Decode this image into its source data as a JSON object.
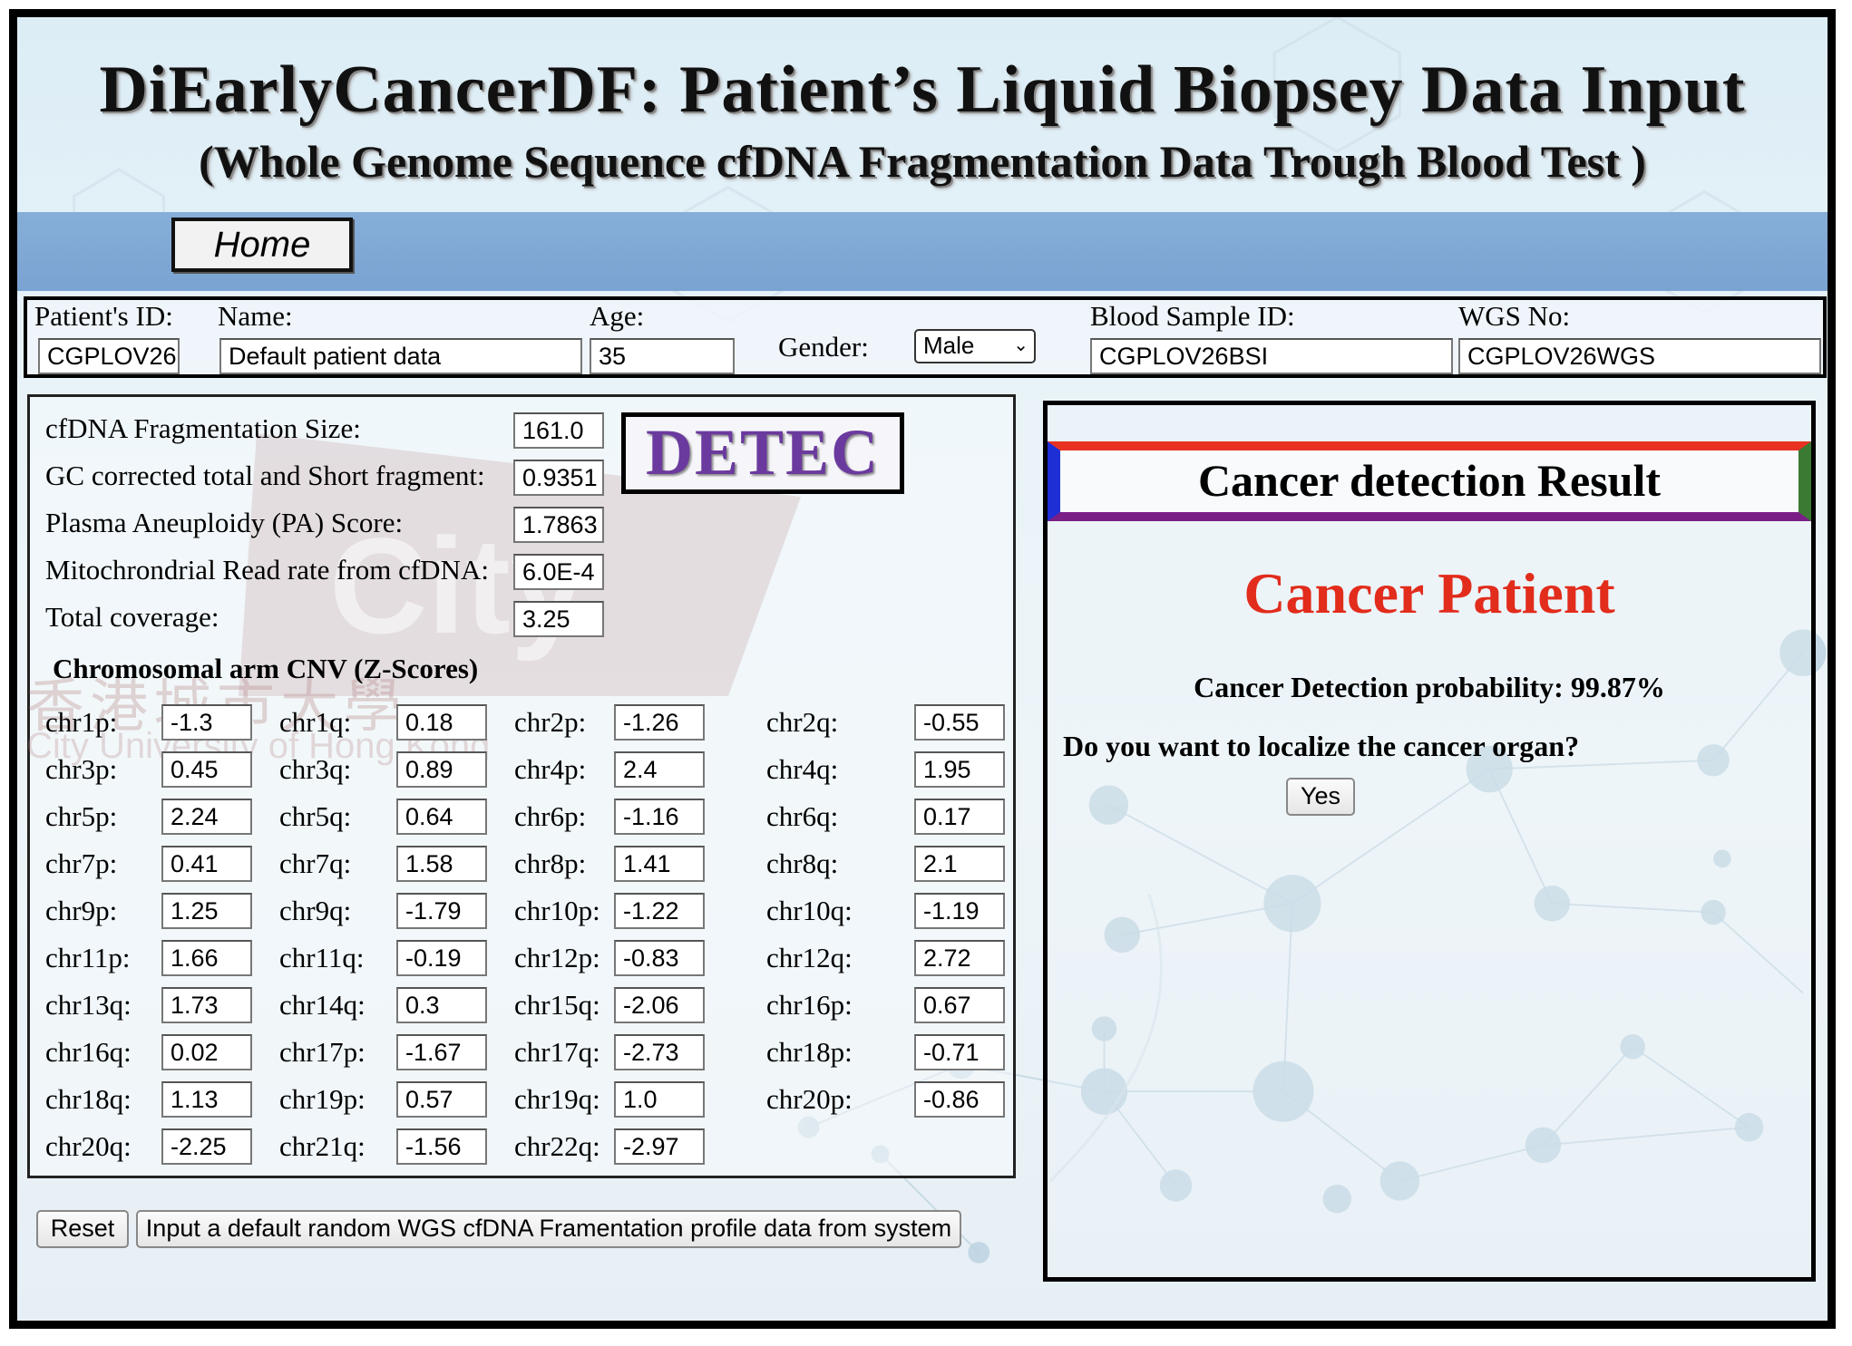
{
  "header": {
    "title": "DiEarlyCancerDF:  Patient’s Liquid Biopsey Data Input",
    "subtitle": "(Whole Genome Sequence cfDNA Fragmentation Data Trough Blood Test )"
  },
  "nav": {
    "home_label": "Home"
  },
  "patient": {
    "id_label": "Patient's ID:",
    "id_value": "CGPLOV26",
    "name_label": "Name:",
    "name_value": "Default patient data",
    "age_label": "Age:",
    "age_value": "35",
    "gender_label": "Gender:",
    "gender_value": "Male",
    "blood_label": "Blood Sample ID:",
    "blood_value": "CGPLOV26BSI",
    "wgs_label": "WGS No:",
    "wgs_value": "CGPLOV26WGS"
  },
  "metrics": [
    {
      "label": "cfDNA Fragmentation Size:",
      "value": "161.0"
    },
    {
      "label": "GC corrected total and Short fragment:",
      "value": "0.9351"
    },
    {
      "label": "Plasma Aneuploidy (PA) Score:",
      "value": "1.7863"
    },
    {
      "label": "Mitochrondrial Read rate from cfDNA:",
      "value": "6.0E-4"
    },
    {
      "label": "Total coverage:",
      "value": "3.25"
    }
  ],
  "detec_logo": "DETEC",
  "watermark": {
    "chinese": "香港城市大學",
    "english": "City University of Hong Kong",
    "mark": "City"
  },
  "cnv": {
    "title": "Chromosomal arm CNV (Z-Scores)",
    "rows": [
      [
        [
          "chr1p:",
          "-1.3"
        ],
        [
          "chr1q:",
          "0.18"
        ],
        [
          "chr2p:",
          "-1.26"
        ],
        [
          "chr2q:",
          "-0.55"
        ]
      ],
      [
        [
          "chr3p:",
          "0.45"
        ],
        [
          "chr3q:",
          "0.89"
        ],
        [
          "chr4p:",
          "2.4"
        ],
        [
          "chr4q:",
          "1.95"
        ]
      ],
      [
        [
          "chr5p:",
          "2.24"
        ],
        [
          "chr5q:",
          "0.64"
        ],
        [
          "chr6p:",
          "-1.16"
        ],
        [
          "chr6q:",
          "0.17"
        ]
      ],
      [
        [
          "chr7p:",
          "0.41"
        ],
        [
          "chr7q:",
          "1.58"
        ],
        [
          "chr8p:",
          "1.41"
        ],
        [
          "chr8q:",
          "2.1"
        ]
      ],
      [
        [
          "chr9p:",
          "1.25"
        ],
        [
          "chr9q:",
          "-1.79"
        ],
        [
          "chr10p:",
          "-1.22"
        ],
        [
          "chr10q:",
          "-1.19"
        ]
      ],
      [
        [
          "chr11p:",
          "1.66"
        ],
        [
          "chr11q:",
          "-0.19"
        ],
        [
          "chr12p:",
          "-0.83"
        ],
        [
          "chr12q:",
          "2.72"
        ]
      ],
      [
        [
          "chr13q:",
          "1.73"
        ],
        [
          "chr14q:",
          "0.3"
        ],
        [
          "chr15q:",
          "-2.06"
        ],
        [
          "chr16p:",
          "0.67"
        ]
      ],
      [
        [
          "chr16q:",
          "0.02"
        ],
        [
          "chr17p:",
          "-1.67"
        ],
        [
          "chr17q:",
          "-2.73"
        ],
        [
          "chr18p:",
          "-0.71"
        ]
      ],
      [
        [
          "chr18q:",
          "1.13"
        ],
        [
          "chr19p:",
          "0.57"
        ],
        [
          "chr19q:",
          "1.0"
        ],
        [
          "chr20p:",
          "-0.86"
        ]
      ],
      [
        [
          "chr20q:",
          "-2.25"
        ],
        [
          "chr21q:",
          "-1.56"
        ],
        [
          "chr22q:",
          "-2.97"
        ]
      ]
    ]
  },
  "buttons": {
    "reset": "Reset",
    "random": "Input a default random WGS cfDNA Framentation profile data from system"
  },
  "result": {
    "header": "Cancer detection Result",
    "status": "Cancer Patient",
    "probability": "Cancer Detection probability: 99.87%",
    "question": "Do you want to localize the cancer organ?",
    "yes_label": "Yes"
  },
  "colors": {
    "status_red": "#e22c1c",
    "nav_blue": "#7aa3d2",
    "header_top": "#e83323",
    "header_bottom": "#7a1f86",
    "header_left": "#1e2fd6",
    "header_right": "#3a7a32",
    "detec_purple": "#6b3a9e"
  }
}
